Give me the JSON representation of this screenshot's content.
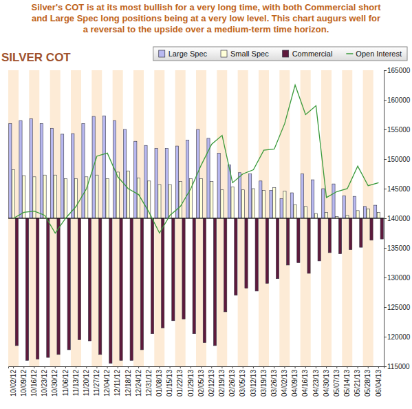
{
  "chart_data": {
    "type": "bar",
    "annotation": [
      "Silver's COT is at its most bullish for a very long time, with both Commercial short",
      "and Large Spec long positions being at a very low level. This chart augurs well for",
      "a reversal to the upside over a medium-term time horizon."
    ],
    "title": "SILVER COT",
    "categories": [
      "10/02/12",
      "10/09/12",
      "10/16/12",
      "10/23/12",
      "10/30/12",
      "11/06/12",
      "11/13/12",
      "11/20/12",
      "11/27/12",
      "12/04/12",
      "12/11/12",
      "12/18/12",
      "12/24/12",
      "12/31/12",
      "01/08/13",
      "01/15/13",
      "01/22/13",
      "01/29/13",
      "02/05/13",
      "02/12/13",
      "02/19/13",
      "02/26/13",
      "03/05/13",
      "03/12/13",
      "03/19/13",
      "03/26/13",
      "04/02/13",
      "04/09/13",
      "04/16/13",
      "04/23/13",
      "04/30/13",
      "05/07/13",
      "05/14/13",
      "05/21/13",
      "05/28/13",
      "06/04/13"
    ],
    "baseline": 140000,
    "series": [
      {
        "name": "Large Spec",
        "type": "bar",
        "color": "#b8b8f0",
        "values": [
          156000,
          156500,
          156800,
          156000,
          155200,
          154200,
          154300,
          156000,
          157200,
          157300,
          156500,
          155000,
          153000,
          152300,
          151800,
          151800,
          152200,
          153200,
          155000,
          153500,
          151000,
          149000,
          147700,
          147500,
          146300,
          144700,
          143300,
          144300,
          147500,
          146500,
          145000,
          145800,
          143800,
          143700,
          142000,
          142200
        ]
      },
      {
        "name": "Small Spec",
        "type": "bar",
        "color": "#ffffd8",
        "values": [
          148200,
          147200,
          147000,
          147300,
          147300,
          146700,
          146700,
          147000,
          147300,
          146700,
          147800,
          148000,
          146800,
          146300,
          145700,
          145700,
          146200,
          146700,
          146700,
          146200,
          144800,
          145300,
          144800,
          145000,
          144700,
          145200,
          144600,
          142300,
          142000,
          140800,
          141000,
          140300,
          140500,
          141300,
          141600,
          141000
        ]
      },
      {
        "name": "Commercial",
        "type": "bar",
        "color": "#5e1a3c",
        "values": [
          118500,
          116000,
          116200,
          116500,
          117000,
          117800,
          119500,
          119300,
          117000,
          115500,
          116000,
          116000,
          117800,
          120500,
          121500,
          122700,
          123000,
          120500,
          119000,
          118500,
          124200,
          127000,
          128200,
          127700,
          129000,
          129800,
          132100,
          132500,
          130700,
          132800,
          134200,
          134000,
          134700,
          135100,
          136300,
          136500
        ]
      },
      {
        "name": "Open Interest",
        "type": "line",
        "color": "#3a9a3a",
        "values": [
          140000,
          141000,
          141200,
          140500,
          137500,
          140000,
          142000,
          145000,
          150500,
          151000,
          147000,
          145000,
          144000,
          141000,
          137500,
          140500,
          142000,
          145000,
          149000,
          152500,
          154000,
          146000,
          147500,
          148200,
          151500,
          151700,
          156000,
          162500,
          157500,
          159000,
          143500,
          144500,
          145000,
          148800,
          145500,
          146000
        ]
      }
    ],
    "ylim": [
      115000,
      165000
    ],
    "yticks": [
      115000,
      120000,
      125000,
      130000,
      135000,
      140000,
      145000,
      150000,
      155000,
      160000,
      165000
    ],
    "grid": false,
    "legend": "top-right"
  }
}
